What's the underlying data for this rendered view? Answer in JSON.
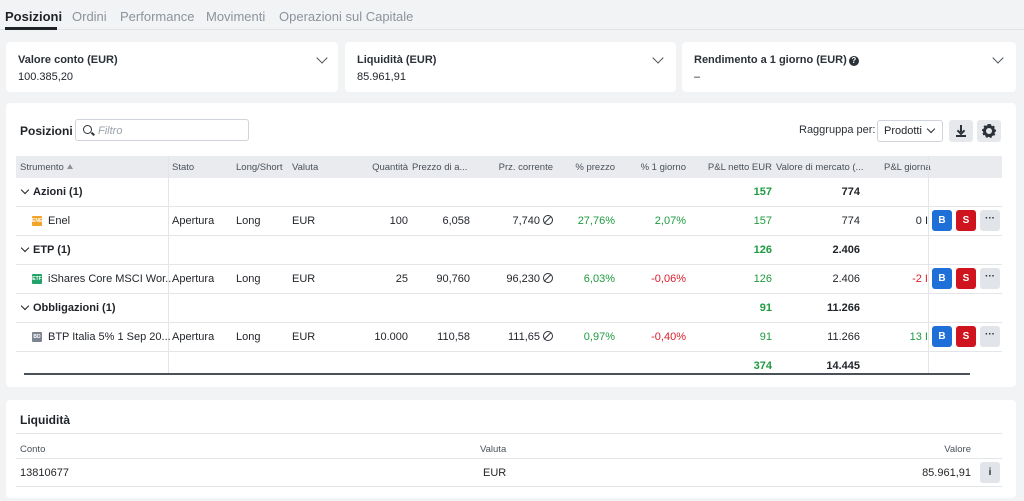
{
  "tabs": [
    "Posizioni",
    "Ordini",
    "Performance",
    "Movimenti",
    "Operazioni sul Capitale"
  ],
  "kpis": [
    {
      "label": "Valore conto (EUR)",
      "value": "100.385,20"
    },
    {
      "label": "Liquidità (EUR)",
      "value": "85.961,91"
    },
    {
      "label": "Rendimento a 1 giorno (EUR)",
      "value": "–"
    }
  ],
  "positions": {
    "title": "Posizioni",
    "filter_placeholder": "Filtro",
    "group_by_label": "Raggruppa per:",
    "group_by_value": "Prodotti",
    "columns": [
      "Strumento",
      "Stato",
      "Long/Short",
      "Valuta",
      "Quantità",
      "Prezzo di a...",
      "Prz. corrente",
      "% prezzo",
      "% 1 giorno",
      "P&L netto EUR",
      "Valore di mercato (...",
      "P&L giorna"
    ],
    "groups": [
      {
        "name": "Azioni (1)",
        "pl": "157",
        "value": "774",
        "row": {
          "icon_text": "ENEL",
          "icon_color": "#f0a429",
          "name": "Enel",
          "status": "Apertura",
          "side": "Long",
          "currency": "EUR",
          "qty": "100",
          "avg_price": "6,058",
          "price": "7,740",
          "pct_price": "27,76%",
          "pct_day": "2,07%",
          "pl": "157",
          "value": "774",
          "pl_day": "0 I"
        }
      },
      {
        "name": "ETP (1)",
        "pl": "126",
        "value": "2.406",
        "row": {
          "icon_text": "ETF",
          "icon_color": "#23a36a",
          "name": "iShares Core MSCI Wor...",
          "status": "Apertura",
          "side": "Long",
          "currency": "EUR",
          "qty": "25",
          "avg_price": "90,760",
          "price": "96,230",
          "pct_price": "6,03%",
          "pct_day": "-0,06%",
          "pl": "126",
          "value": "2.406",
          "pl_day": "-2 I"
        }
      },
      {
        "name": "Obbligazioni (1)",
        "pl": "91",
        "value": "11.266",
        "row": {
          "icon_text": "BD",
          "icon_color": "#7b8490",
          "name": "BTP Italia 5% 1 Sep 20...",
          "status": "Apertura",
          "side": "Long",
          "currency": "EUR",
          "qty": "10.000",
          "avg_price": "110,58",
          "price": "111,65",
          "pct_price": "0,97%",
          "pct_day": "-0,40%",
          "pl": "91",
          "value": "11.266",
          "pl_day": "13 I"
        }
      }
    ],
    "total": {
      "pl": "374",
      "value": "14.445"
    },
    "buy_label": "B",
    "sell_label": "S",
    "more_label": "···"
  },
  "liquidity": {
    "title": "Liquidità",
    "columns": [
      "Conto",
      "Valuta",
      "Valore"
    ],
    "row": {
      "account": "13810677",
      "currency": "EUR",
      "value": "85.961,91"
    },
    "info_label": "i"
  },
  "colors": {
    "green": "#1e9b3f",
    "red": "#d91e2a",
    "buy": "#1f6fd8",
    "sell": "#d0141f"
  }
}
